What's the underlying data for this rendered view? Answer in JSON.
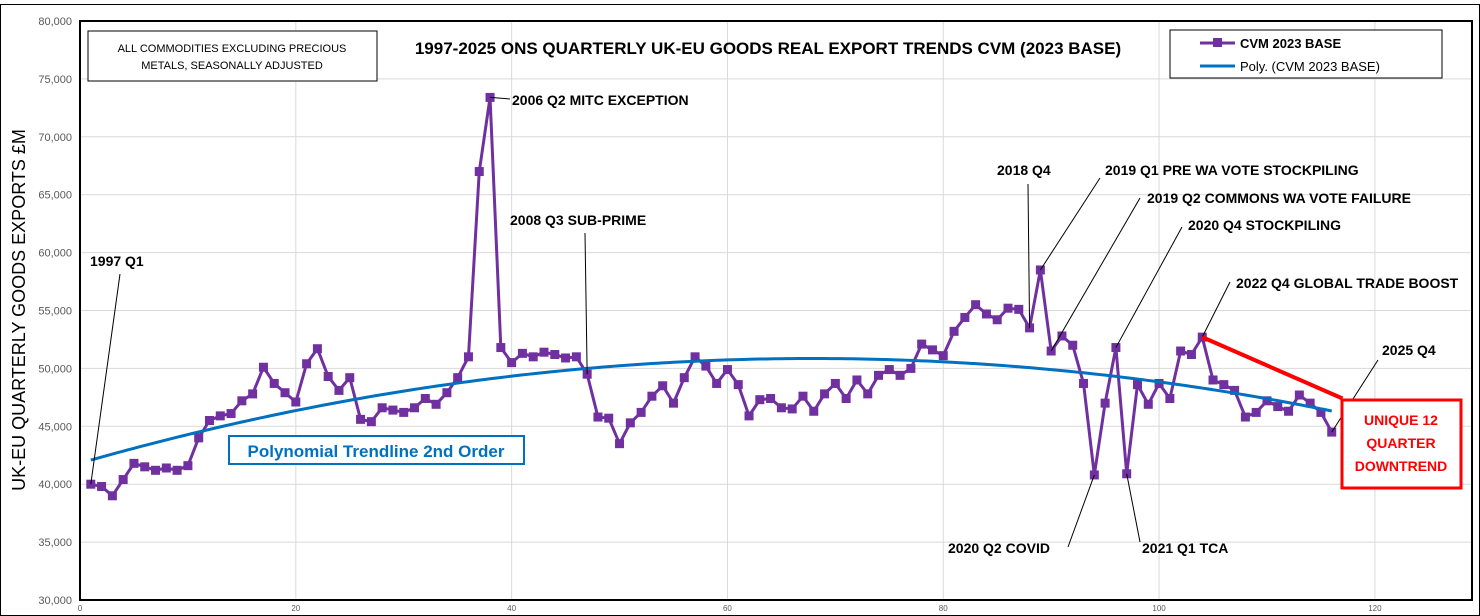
{
  "chart_data": {
    "type": "line",
    "title": "1997-2025 ONS QUARTERLY UK-EU GOODS REAL EXPORT TRENDS CVM (2023 BASE)",
    "subtitle_box": [
      "ALL COMMODITIES EXCLUDING PRECIOUS",
      "METALS, SEASONALLY ADJUSTED"
    ],
    "xlabel": "",
    "ylabel": "UK-EU QUARTERLY GOODS EXPORTS £M",
    "xlim": [
      0,
      129
    ],
    "ylim": [
      30000,
      80000
    ],
    "xticks": [
      0,
      20,
      40,
      60,
      80,
      100,
      120
    ],
    "xtick_labels": [
      "0",
      "20",
      "40",
      "60",
      "80",
      "100",
      "120"
    ],
    "yticks": [
      30000,
      35000,
      40000,
      45000,
      50000,
      55000,
      60000,
      65000,
      70000,
      75000,
      80000
    ],
    "ytick_labels": [
      "30,000",
      "35,000",
      "40,000",
      "45,000",
      "50,000",
      "55,000",
      "60,000",
      "65,000",
      "70,000",
      "75,000",
      "80,000"
    ],
    "grid": true,
    "legend_position": "top-right",
    "series": [
      {
        "name": "CVM 2023 BASE",
        "color": "#7030A0",
        "x_start": 1,
        "values": [
          40000,
          39800,
          39000,
          40400,
          41800,
          41500,
          41200,
          41400,
          41200,
          41600,
          44000,
          45500,
          45900,
          46100,
          47200,
          47800,
          50100,
          48700,
          47900,
          47100,
          50400,
          51700,
          49300,
          48100,
          49200,
          45600,
          45400,
          46600,
          46400,
          46200,
          46600,
          47400,
          46900,
          47900,
          49200,
          51000,
          67000,
          73400,
          51800,
          50500,
          51300,
          51000,
          51400,
          51200,
          50900,
          51000,
          49500,
          45800,
          45700,
          43500,
          45300,
          46200,
          47600,
          48500,
          47000,
          49200,
          51000,
          50200,
          48700,
          49900,
          48600,
          45900,
          47300,
          47400,
          46600,
          46500,
          47600,
          46300,
          47800,
          48700,
          47400,
          49000,
          47800,
          49400,
          49900,
          49400,
          50000,
          52100,
          51600,
          51100,
          53200,
          54400,
          55500,
          54700,
          54200,
          55200,
          55100,
          53500,
          58500,
          51500,
          52800,
          52000,
          48700,
          40800,
          47000,
          51800,
          40900,
          48600,
          46900,
          48700,
          47400,
          51500,
          51200,
          52700,
          49000,
          48600,
          48100,
          45800,
          46200,
          47200,
          46700,
          46300,
          47700,
          47000,
          46200,
          44500
        ]
      },
      {
        "name": "Poly. (CVM 2023 BASE)",
        "color": "#0070C0",
        "type": "polynomial-trendline-order-2"
      }
    ],
    "annotations": [
      {
        "text": "1997 Q1",
        "x": 1
      },
      {
        "text": "2006 Q2 MITC EXCEPTION",
        "x": 38
      },
      {
        "text": "2008 Q3 SUB-PRIME",
        "x": 47
      },
      {
        "text": "2018 Q4",
        "x": 88
      },
      {
        "text": "2019 Q1 PRE WA VOTE STOCKPILING",
        "x": 89
      },
      {
        "text": "2019 Q2 COMMONS WA VOTE FAILURE",
        "x": 90
      },
      {
        "text": "2020 Q4 STOCKPILING",
        "x": 96
      },
      {
        "text": "2022 Q4 GLOBAL TRADE BOOST",
        "x": 104
      },
      {
        "text": "2025 Q4",
        "x": 116
      },
      {
        "text": "2020 Q2 COVID",
        "x": 94
      },
      {
        "text": "2021 Q1 TCA",
        "x": 97
      }
    ],
    "trendline_label": "Polynomial Trendline 2nd Order",
    "downtrend": {
      "from_x": 104,
      "to_x": 117,
      "to_y": 47400,
      "color": "#FF0000",
      "label": [
        "UNIQUE 12",
        "QUARTER",
        "DOWNTREND"
      ]
    }
  }
}
